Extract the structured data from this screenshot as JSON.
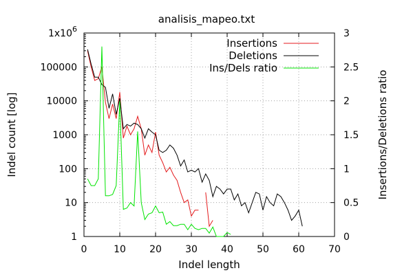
{
  "chart_data": {
    "type": "line",
    "title": "analisis_mapeo.txt",
    "xlabel": "Indel length",
    "ylabel": "Indel count [log]",
    "y2label": "Insertions/Deletions ratio",
    "xlim": [
      0,
      70
    ],
    "ylim": [
      1,
      1000000
    ],
    "y2lim": [
      0,
      3
    ],
    "y_scale": "log",
    "grid": true,
    "legend_position": "top-right",
    "x_ticks": [
      "0",
      "10",
      "20",
      "30",
      "40",
      "50",
      "60",
      "70"
    ],
    "y_ticks": [
      "1",
      "10",
      "100",
      "1000",
      "10000",
      "100000",
      "1x10^6"
    ],
    "y_ticks_display": [
      {
        "value": 1,
        "label": "1",
        "sup": ""
      },
      {
        "value": 10,
        "label": "10",
        "sup": ""
      },
      {
        "value": 100,
        "label": "100",
        "sup": ""
      },
      {
        "value": 1000,
        "label": "1000",
        "sup": ""
      },
      {
        "value": 10000,
        "label": "10000",
        "sup": ""
      },
      {
        "value": 100000,
        "label": "100000",
        "sup": ""
      },
      {
        "value": 1000000,
        "label": "1x10",
        "sup": "6"
      }
    ],
    "y2_ticks": [
      "0",
      "0.5",
      "1",
      "1.5",
      "2",
      "2.5",
      "3"
    ],
    "series": [
      {
        "name": "Insertions",
        "axis": "left",
        "color": "#e41a1c",
        "x": [
          1,
          2,
          3,
          4,
          5,
          6,
          7,
          8,
          9,
          10,
          11,
          12,
          13,
          14,
          15,
          16,
          17,
          18,
          19,
          20,
          21,
          22,
          23,
          24,
          25,
          26,
          27,
          28,
          29,
          30,
          31,
          32,
          33,
          34,
          35,
          36,
          37
        ],
        "values": [
          300000,
          100000,
          40000,
          45000,
          100000,
          9000,
          3000,
          8000,
          3000,
          18000,
          800,
          1800,
          1000,
          1500,
          3500,
          1500,
          250,
          500,
          300,
          1200,
          250,
          150,
          80,
          110,
          65,
          45,
          20,
          10,
          12,
          4,
          6,
          6,
          null,
          20,
          2,
          3,
          null
        ]
      },
      {
        "name": "Deletions",
        "axis": "left",
        "color": "#000000",
        "x": [
          1,
          2,
          3,
          4,
          5,
          6,
          7,
          8,
          9,
          10,
          11,
          12,
          13,
          14,
          15,
          16,
          17,
          18,
          19,
          20,
          21,
          22,
          23,
          24,
          25,
          26,
          27,
          28,
          29,
          30,
          31,
          32,
          33,
          34,
          35,
          36,
          37,
          38,
          39,
          40,
          41,
          42,
          43,
          44,
          45,
          46,
          47,
          48,
          49,
          50,
          51,
          52,
          53,
          54,
          55,
          56,
          57,
          58,
          59,
          60,
          61
        ],
        "values": [
          330000,
          120000,
          50000,
          50000,
          30000,
          25000,
          6000,
          16000,
          4000,
          12000,
          1500,
          2000,
          1800,
          2200,
          2000,
          1500,
          800,
          1500,
          1200,
          1000,
          350,
          300,
          350,
          500,
          400,
          250,
          120,
          180,
          80,
          90,
          80,
          100,
          40,
          70,
          45,
          15,
          30,
          25,
          18,
          25,
          25,
          12,
          18,
          8,
          10,
          5,
          10,
          20,
          18,
          6,
          15,
          10,
          8,
          18,
          15,
          10,
          6,
          3,
          4,
          6,
          2
        ]
      },
      {
        "name": "Ins/Dels ratio",
        "axis": "right",
        "color": "#00e400",
        "x": [
          1,
          2,
          3,
          4,
          5,
          6,
          7,
          8,
          9,
          10,
          11,
          12,
          13,
          14,
          15,
          16,
          17,
          18,
          19,
          20,
          21,
          22,
          23,
          24,
          25,
          26,
          27,
          28,
          29,
          30,
          31,
          32,
          33,
          34,
          35,
          36,
          37,
          38,
          39,
          40,
          41
        ],
        "values": [
          0.85,
          0.75,
          0.75,
          0.85,
          2.8,
          0.6,
          0.6,
          0.62,
          0.75,
          2.0,
          0.4,
          0.42,
          0.5,
          0.45,
          1.55,
          0.5,
          0.25,
          0.33,
          0.35,
          0.45,
          0.35,
          0.36,
          0.18,
          0.22,
          0.16,
          0.16,
          0.18,
          0.18,
          0.1,
          0.18,
          0.12,
          0.1,
          0.12,
          0.12,
          0.05,
          0.14,
          0.0,
          0.0,
          0.0,
          0.06,
          0.03
        ]
      }
    ]
  }
}
